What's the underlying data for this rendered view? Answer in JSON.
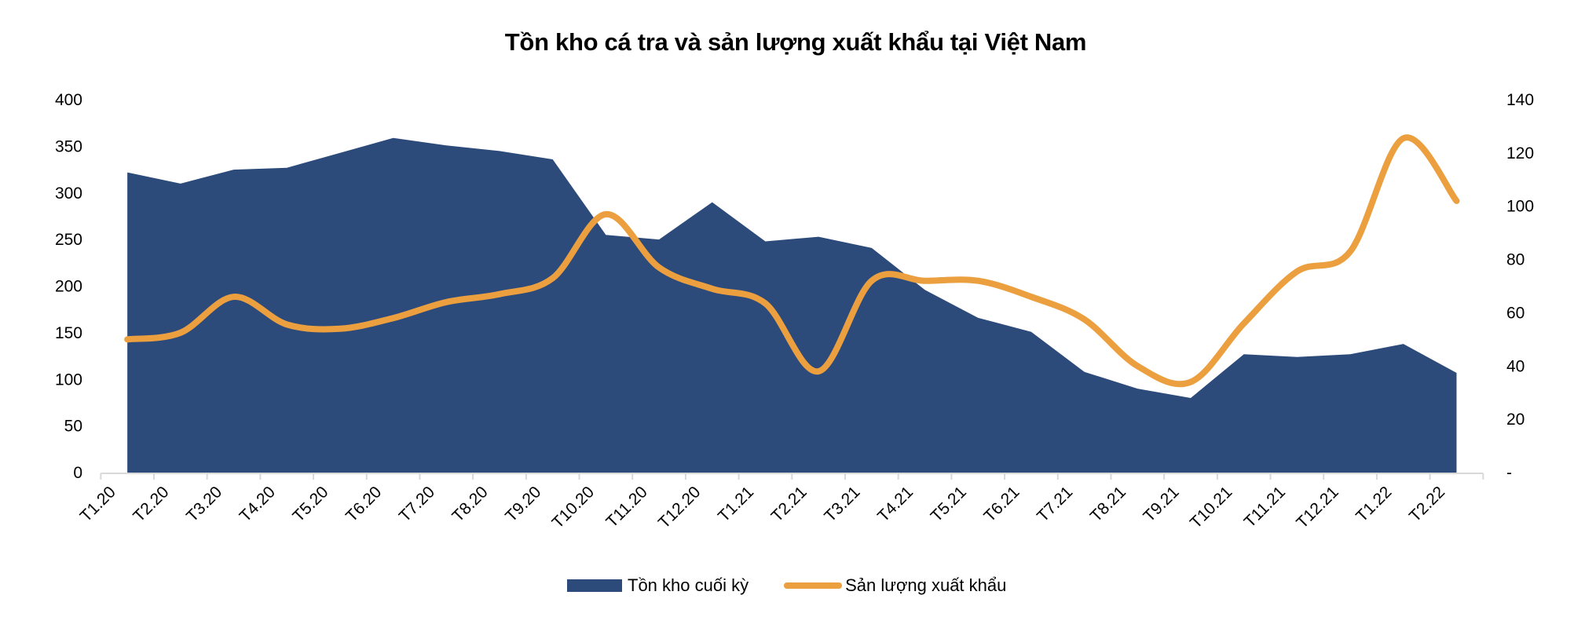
{
  "chart_data": {
    "type": "area+line",
    "title": "Tồn kho cá tra và sản lượng xuất khẩu tại Việt Nam",
    "categories": [
      "T1.20",
      "T2.20",
      "T3.20",
      "T4.20",
      "T5.20",
      "T6.20",
      "T7.20",
      "T8.20",
      "T9.20",
      "T10.20",
      "T11.20",
      "T12.20",
      "T1.21",
      "T2.21",
      "T3.21",
      "T4.21",
      "T5.21",
      "T6.21",
      "T7.21",
      "T8.21",
      "T9.21",
      "T10.21",
      "T11.21",
      "T12.21",
      "T1.22",
      "T2.22"
    ],
    "series": [
      {
        "name": "Tồn kho cuối kỳ",
        "type": "area",
        "axis": "left",
        "color": "#2c4a7a",
        "values": [
          322,
          310,
          325,
          327,
          343,
          359,
          351,
          345,
          336,
          255,
          250,
          290,
          248,
          253,
          241,
          196,
          166,
          151,
          108,
          90,
          80,
          127,
          124,
          127,
          138,
          107
        ]
      },
      {
        "name": "Sản lượng xuất khẩu",
        "type": "line",
        "smooth": true,
        "axis": "right",
        "color": "#eb9f3f",
        "values": [
          50,
          52.5,
          66,
          55.6,
          54,
          58,
          64,
          67,
          73,
          97,
          77,
          69,
          63.5,
          38,
          72,
          72,
          72,
          66,
          57.5,
          40,
          34,
          56,
          75.5,
          83,
          125.5,
          102
        ]
      }
    ],
    "left_axis": {
      "min": 0,
      "max": 400,
      "step": 50,
      "ticks": [
        "0",
        "50",
        "100",
        "150",
        "200",
        "250",
        "300",
        "350",
        "400"
      ]
    },
    "right_axis": {
      "min": 0,
      "max": 140,
      "step": 20,
      "ticks": [
        "-",
        "20",
        "40",
        "60",
        "80",
        "100",
        "120",
        "140"
      ]
    },
    "xlabel": "",
    "ylabel": "",
    "grid": false,
    "legend_position": "bottom"
  },
  "legend": {
    "area_label": "Tồn kho cuối kỳ",
    "line_label": "Sản lượng xuất khẩu"
  }
}
